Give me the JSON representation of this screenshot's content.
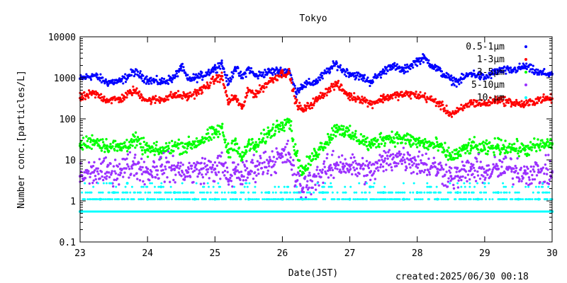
{
  "chart_data": {
    "type": "scatter",
    "title": "Tokyo",
    "xlabel": "Date(JST)",
    "ylabel": "Number conc.[particles/L]",
    "xlim": [
      23,
      30
    ],
    "ylim": [
      0.1,
      10000
    ],
    "yscale": "log",
    "x_ticks": [
      "23",
      "24",
      "25",
      "26",
      "27",
      "28",
      "29",
      "30"
    ],
    "y_ticks": [
      "0.1",
      "1",
      "10",
      "100",
      "1000",
      "10000"
    ],
    "grid": false,
    "legend_position": "top-right",
    "series": [
      {
        "name": "0.5-1μm",
        "color": "#0000ff",
        "points": [
          [
            23.0,
            950
          ],
          [
            23.2,
            1150
          ],
          [
            23.4,
            780
          ],
          [
            23.6,
            820
          ],
          [
            23.8,
            1400
          ],
          [
            24.0,
            900
          ],
          [
            24.2,
            780
          ],
          [
            24.4,
            1000
          ],
          [
            24.5,
            1900
          ],
          [
            24.6,
            900
          ],
          [
            24.8,
            1100
          ],
          [
            25.0,
            1700
          ],
          [
            25.1,
            2300
          ],
          [
            25.2,
            700
          ],
          [
            25.3,
            1800
          ],
          [
            25.4,
            1000
          ],
          [
            25.5,
            1700
          ],
          [
            25.6,
            1100
          ],
          [
            25.8,
            1400
          ],
          [
            26.0,
            1500
          ],
          [
            26.1,
            1500
          ],
          [
            26.2,
            450
          ],
          [
            26.3,
            650
          ],
          [
            26.5,
            800
          ],
          [
            26.7,
            1600
          ],
          [
            26.8,
            2200
          ],
          [
            26.9,
            1500
          ],
          [
            27.0,
            1300
          ],
          [
            27.2,
            1000
          ],
          [
            27.3,
            800
          ],
          [
            27.5,
            1400
          ],
          [
            27.6,
            2000
          ],
          [
            27.8,
            1500
          ],
          [
            28.0,
            2600
          ],
          [
            28.1,
            3000
          ],
          [
            28.3,
            1600
          ],
          [
            28.5,
            900
          ],
          [
            28.6,
            800
          ],
          [
            28.8,
            1300
          ],
          [
            29.0,
            1000
          ],
          [
            29.2,
            1500
          ],
          [
            29.4,
            1500
          ],
          [
            29.6,
            1900
          ],
          [
            29.8,
            1300
          ],
          [
            30.0,
            1250
          ]
        ]
      },
      {
        "name": "1-3μm",
        "color": "#ff0000",
        "points": [
          [
            23.0,
            320
          ],
          [
            23.2,
            420
          ],
          [
            23.4,
            290
          ],
          [
            23.6,
            300
          ],
          [
            23.8,
            500
          ],
          [
            24.0,
            280
          ],
          [
            24.2,
            300
          ],
          [
            24.4,
            380
          ],
          [
            24.6,
            350
          ],
          [
            24.8,
            500
          ],
          [
            25.0,
            900
          ],
          [
            25.1,
            1100
          ],
          [
            25.2,
            250
          ],
          [
            25.3,
            350
          ],
          [
            25.4,
            180
          ],
          [
            25.5,
            500
          ],
          [
            25.6,
            400
          ],
          [
            25.8,
            800
          ],
          [
            26.0,
            1300
          ],
          [
            26.1,
            1300
          ],
          [
            26.2,
            250
          ],
          [
            26.3,
            160
          ],
          [
            26.5,
            280
          ],
          [
            26.7,
            550
          ],
          [
            26.8,
            700
          ],
          [
            26.9,
            500
          ],
          [
            27.0,
            350
          ],
          [
            27.2,
            300
          ],
          [
            27.3,
            230
          ],
          [
            27.5,
            320
          ],
          [
            27.7,
            380
          ],
          [
            27.9,
            400
          ],
          [
            28.1,
            350
          ],
          [
            28.3,
            250
          ],
          [
            28.5,
            130
          ],
          [
            28.6,
            150
          ],
          [
            28.8,
            250
          ],
          [
            29.0,
            230
          ],
          [
            29.2,
            300
          ],
          [
            29.4,
            250
          ],
          [
            29.6,
            220
          ],
          [
            29.8,
            300
          ],
          [
            30.0,
            310
          ]
        ]
      },
      {
        "name": "3-5μm",
        "color": "#00ff00",
        "points": [
          [
            23.0,
            22
          ],
          [
            23.2,
            30
          ],
          [
            23.4,
            22
          ],
          [
            23.6,
            20
          ],
          [
            23.8,
            30
          ],
          [
            24.0,
            18
          ],
          [
            24.2,
            16
          ],
          [
            24.4,
            22
          ],
          [
            24.6,
            22
          ],
          [
            24.8,
            30
          ],
          [
            25.0,
            45
          ],
          [
            25.1,
            60
          ],
          [
            25.2,
            15
          ],
          [
            25.3,
            30
          ],
          [
            25.4,
            10
          ],
          [
            25.5,
            25
          ],
          [
            25.6,
            20
          ],
          [
            25.8,
            45
          ],
          [
            26.0,
            80
          ],
          [
            26.1,
            95
          ],
          [
            26.2,
            15
          ],
          [
            26.3,
            5
          ],
          [
            26.5,
            15
          ],
          [
            26.7,
            35
          ],
          [
            26.8,
            60
          ],
          [
            26.9,
            55
          ],
          [
            27.0,
            40
          ],
          [
            27.2,
            30
          ],
          [
            27.3,
            22
          ],
          [
            27.5,
            35
          ],
          [
            27.7,
            35
          ],
          [
            27.9,
            30
          ],
          [
            28.1,
            25
          ],
          [
            28.3,
            22
          ],
          [
            28.5,
            12
          ],
          [
            28.6,
            14
          ],
          [
            28.8,
            22
          ],
          [
            29.0,
            18
          ],
          [
            29.2,
            22
          ],
          [
            29.4,
            20
          ],
          [
            29.6,
            18
          ],
          [
            29.8,
            22
          ],
          [
            30.0,
            25
          ]
        ]
      },
      {
        "name": "5-10μm",
        "color": "#9b30ff",
        "points": [
          [
            23.0,
            4
          ],
          [
            23.2,
            5
          ],
          [
            23.4,
            5
          ],
          [
            23.6,
            6
          ],
          [
            23.8,
            8
          ],
          [
            24.0,
            5
          ],
          [
            24.2,
            7
          ],
          [
            24.4,
            6
          ],
          [
            24.6,
            5
          ],
          [
            24.8,
            6
          ],
          [
            25.0,
            6
          ],
          [
            25.1,
            8
          ],
          [
            25.2,
            3
          ],
          [
            25.3,
            6
          ],
          [
            25.4,
            4
          ],
          [
            25.5,
            5
          ],
          [
            25.6,
            7
          ],
          [
            25.8,
            9
          ],
          [
            26.0,
            12
          ],
          [
            26.1,
            14
          ],
          [
            26.2,
            3
          ],
          [
            26.3,
            2
          ],
          [
            26.5,
            4
          ],
          [
            26.7,
            6
          ],
          [
            26.8,
            8
          ],
          [
            26.9,
            8
          ],
          [
            27.0,
            7
          ],
          [
            27.2,
            6
          ],
          [
            27.3,
            5
          ],
          [
            27.5,
            9
          ],
          [
            27.7,
            12
          ],
          [
            27.9,
            10
          ],
          [
            28.1,
            8
          ],
          [
            28.3,
            6
          ],
          [
            28.5,
            4
          ],
          [
            28.6,
            4
          ],
          [
            28.8,
            6
          ],
          [
            29.0,
            5
          ],
          [
            29.2,
            6
          ],
          [
            29.4,
            6
          ],
          [
            29.6,
            5
          ],
          [
            29.8,
            5
          ],
          [
            30.0,
            5
          ]
        ]
      },
      {
        "name": "10-μm",
        "color": "#00ffff",
        "points": [
          [
            23.0,
            0.55
          ],
          [
            23.3,
            1.1
          ],
          [
            23.5,
            1.6
          ],
          [
            23.7,
            2.7
          ],
          [
            24.0,
            1.1
          ],
          [
            24.2,
            2.2
          ],
          [
            24.4,
            1.6
          ],
          [
            24.7,
            1.1
          ],
          [
            25.0,
            1.1
          ],
          [
            25.3,
            1.6
          ],
          [
            25.5,
            1.1
          ],
          [
            25.8,
            1.6
          ],
          [
            26.0,
            1.1
          ],
          [
            26.3,
            1.1
          ],
          [
            26.6,
            1.6
          ],
          [
            27.0,
            1.1
          ],
          [
            27.3,
            2.2
          ],
          [
            27.5,
            1.6
          ],
          [
            27.8,
            1.1
          ],
          [
            28.0,
            1.6
          ],
          [
            28.3,
            1.1
          ],
          [
            28.6,
            1.6
          ],
          [
            28.9,
            1.1
          ],
          [
            29.2,
            1.6
          ],
          [
            29.5,
            1.1
          ],
          [
            29.8,
            1.1
          ],
          [
            30.0,
            0.55
          ]
        ]
      }
    ]
  },
  "footer": {
    "created": "created:2025/06/30 00:18"
  }
}
